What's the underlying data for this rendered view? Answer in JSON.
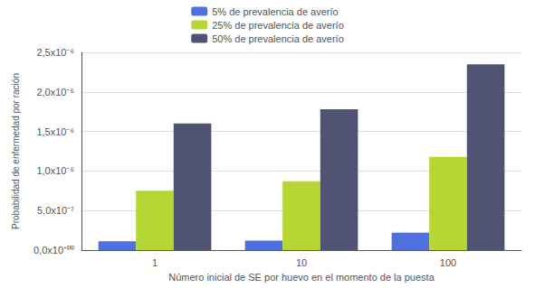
{
  "chart_data": {
    "type": "bar",
    "categories": [
      "1",
      "10",
      "100"
    ],
    "series": [
      {
        "name": "5% de prevalencia de averío",
        "values": [
          1.1e-07,
          1.2e-07,
          2.2e-07
        ]
      },
      {
        "name": "25% de prevalencia de averío",
        "values": [
          7.5e-07,
          8.7e-07,
          1.18e-06
        ]
      },
      {
        "name": "50% de prevalencia de averío",
        "values": [
          1.6e-06,
          1.78e-06,
          2.35e-06
        ]
      }
    ],
    "x_label": "Número inicial de SE por huevo en el momento de la puesta",
    "y_label": "Probabilidad de enfermedad por ración",
    "ylim": [
      0,
      2.5e-06
    ],
    "yticks": [
      {
        "value": 0,
        "label": "0,0x10⁺⁰⁰"
      },
      {
        "value": 5e-07,
        "label": "5,0x10⁻⁷"
      },
      {
        "value": 1e-06,
        "label": "1,0x10⁻⁶"
      },
      {
        "value": 1.5e-06,
        "label": "1,5x10⁻⁶"
      },
      {
        "value": 2e-06,
        "label": "2,0x10⁻⁶"
      },
      {
        "value": 2.5e-06,
        "label": "2,5x10⁻⁶"
      }
    ],
    "grid": true,
    "legend": "upper center"
  }
}
